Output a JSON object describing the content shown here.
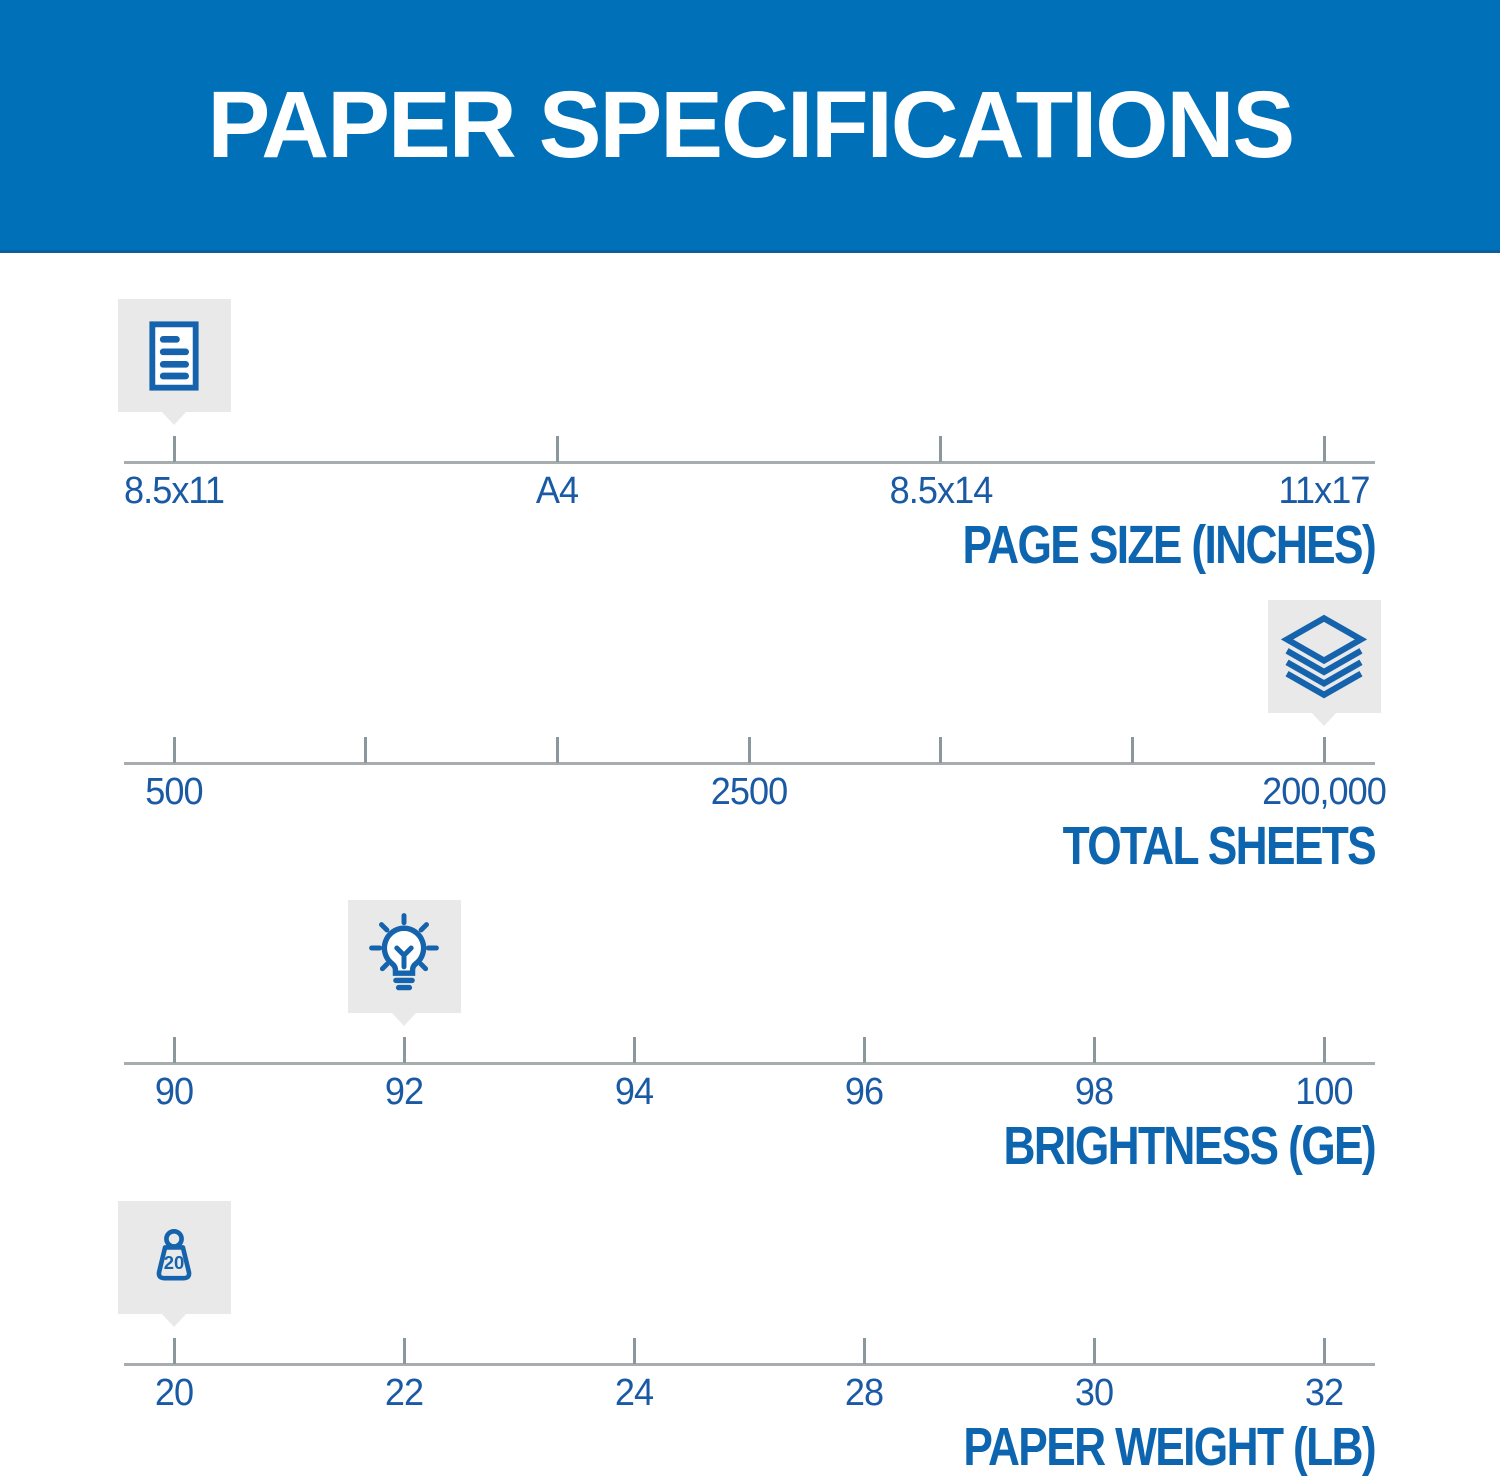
{
  "header": {
    "title": "PAPER SPECIFICATIONS"
  },
  "colors": {
    "banner_blue": "#0070B9",
    "icon_blue": "#1563AC",
    "label_blue": "#1A5AA5",
    "title_blue": "#0D65AF",
    "marker_gray": "#E9E9E9",
    "axis_gray": "#A7ACAE",
    "tick_gray": "#8A989D"
  },
  "chart_data": {
    "type": "scale-infographic",
    "title": "PAPER SPECIFICATIONS",
    "legend_position": "none",
    "grid": false,
    "scales": [
      {
        "id": "page-size",
        "title": "PAGE SIZE (INCHES)",
        "icon": "document-icon",
        "tick_labels": [
          "8.5x11",
          "A4",
          "8.5x14",
          "11x17"
        ],
        "marker_index": 0,
        "marker_value": "8.5x11"
      },
      {
        "id": "total-sheets",
        "title": "TOTAL SHEETS",
        "icon": "paper-stack-icon",
        "tick_labels": [
          "500",
          "",
          "",
          "2500",
          "",
          "",
          "200,000"
        ],
        "marker_index": 6,
        "marker_value": "200,000"
      },
      {
        "id": "brightness",
        "title": "BRIGHTNESS (GE)",
        "icon": "lightbulb-icon",
        "tick_labels": [
          "90",
          "92",
          "94",
          "96",
          "98",
          "100"
        ],
        "marker_index": 1,
        "marker_value": "92"
      },
      {
        "id": "paper-weight",
        "title": "PAPER WEIGHT (LB)",
        "icon": "weight-icon",
        "icon_text": "20",
        "tick_labels": [
          "20",
          "22",
          "24",
          "28",
          "30",
          "32"
        ],
        "marker_index": 0,
        "marker_value": "20"
      }
    ]
  }
}
